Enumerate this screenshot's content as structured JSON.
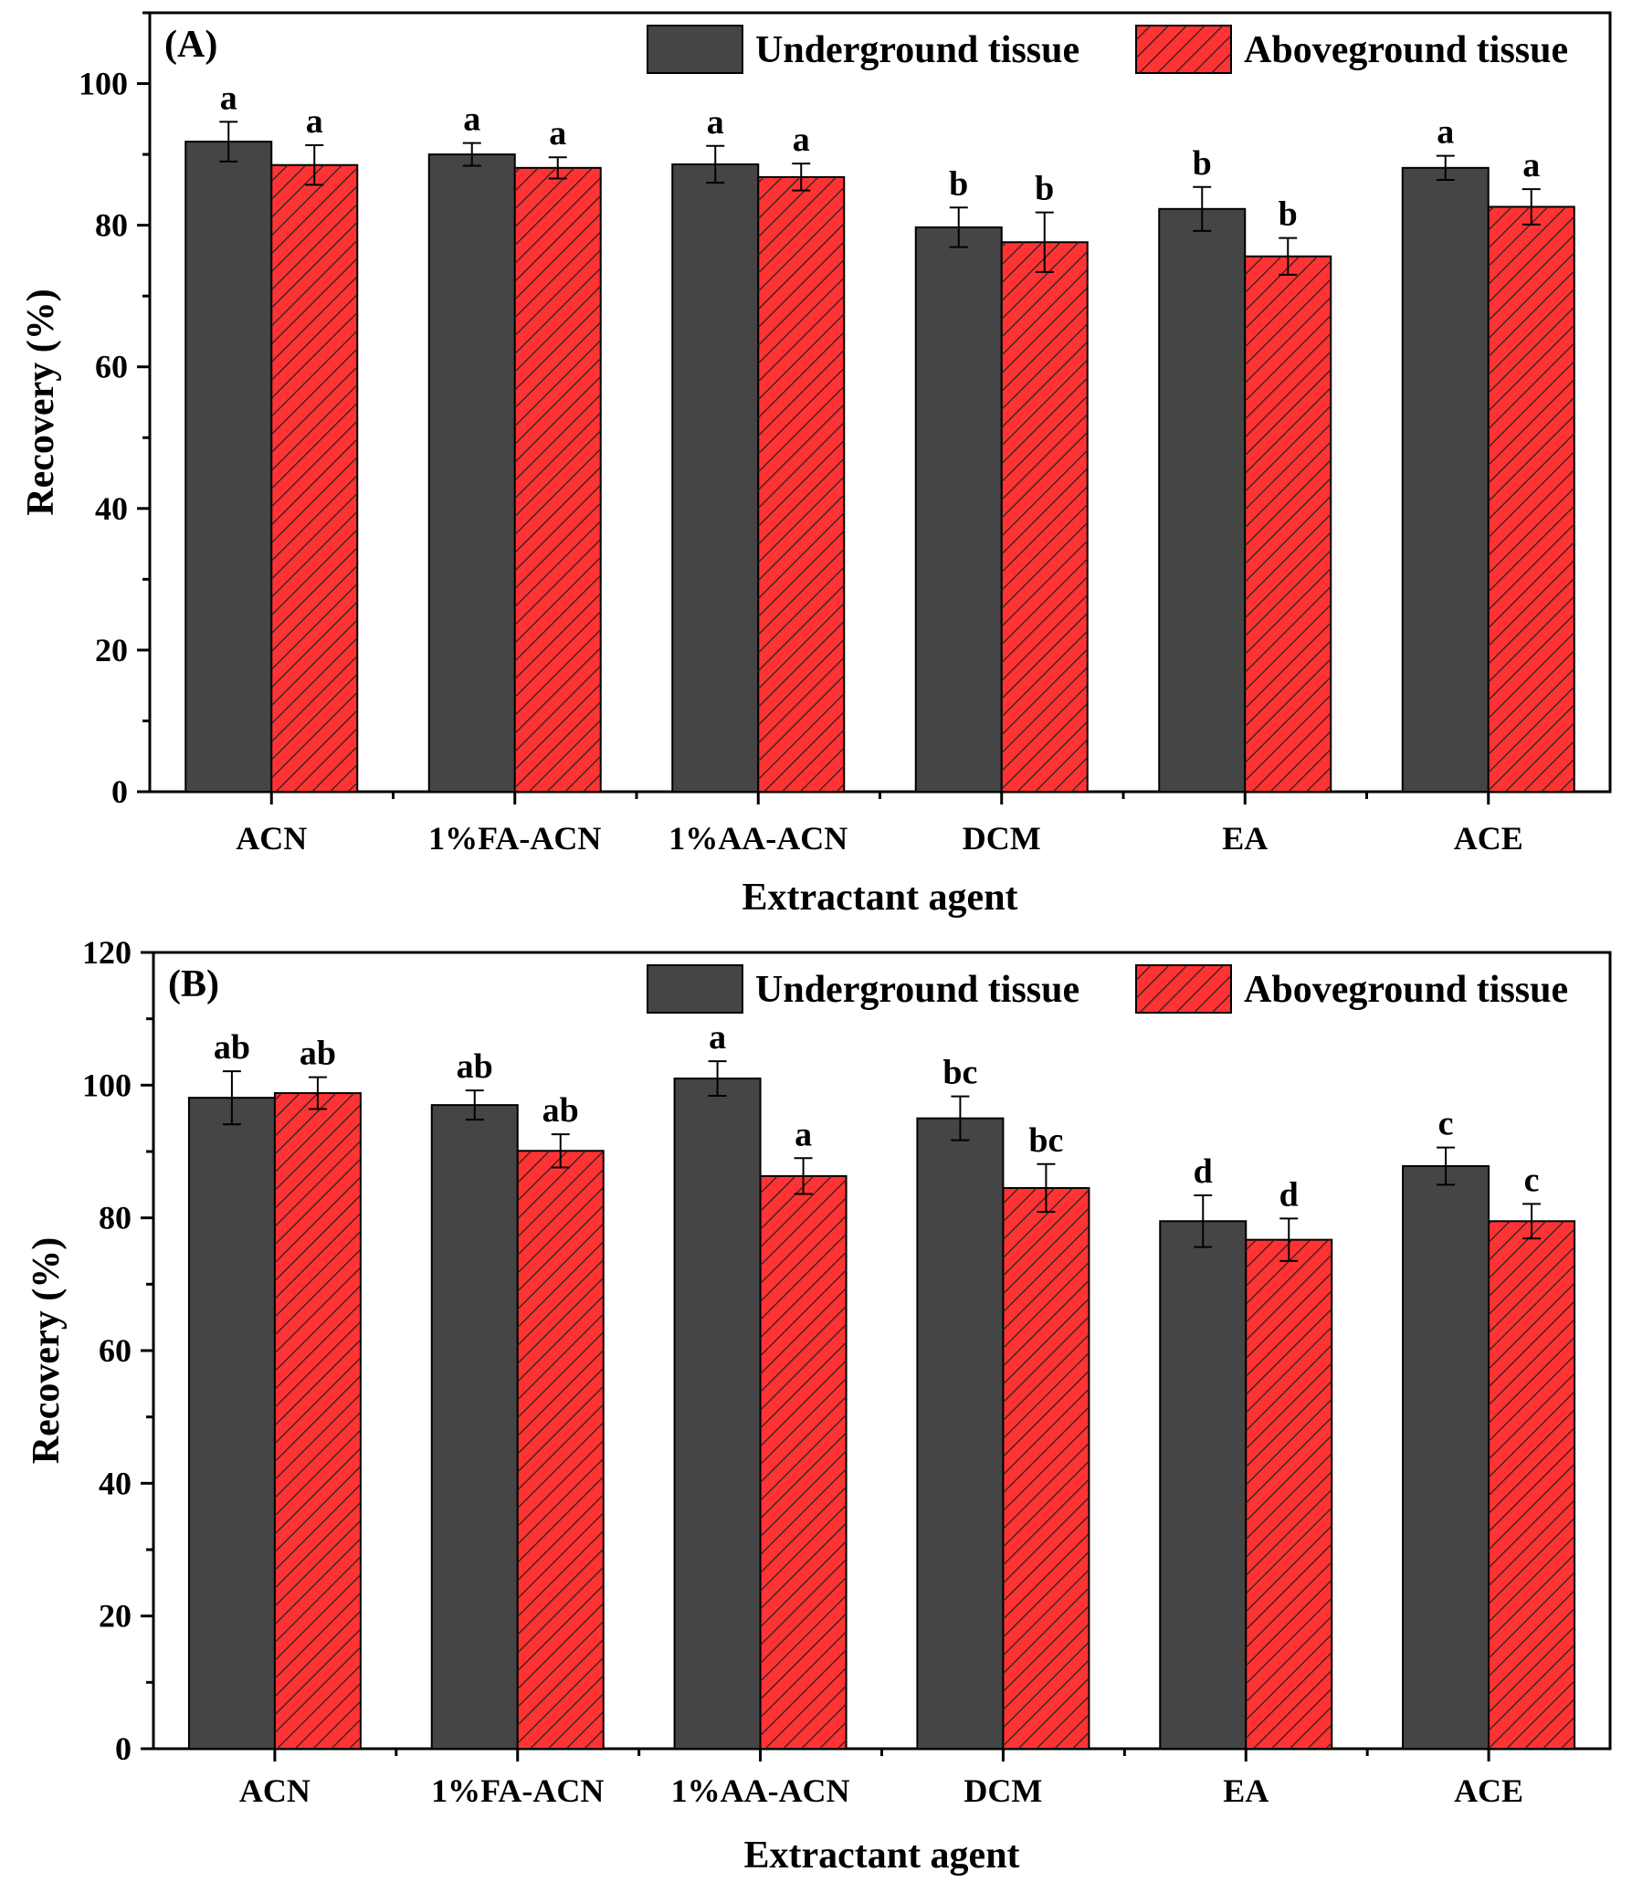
{
  "colors": {
    "underground": "#454545",
    "aboveground": "#ff3333",
    "hatch": "#222222"
  },
  "chart_data": [
    {
      "type": "bar",
      "panel_label": "(A)",
      "title": "",
      "xlabel": "Extractant agent",
      "ylabel": "Recovery (%)",
      "ylim": [
        0,
        110
      ],
      "yticks": [
        0,
        20,
        40,
        60,
        80,
        100
      ],
      "grid": false,
      "legend_position": "top-right",
      "categories": [
        "ACN",
        "1%FA-ACN",
        "1%AA-ACN",
        "DCM",
        "EA",
        "ACE"
      ],
      "series": [
        {
          "name": "Underground tissue",
          "values": [
            91.8,
            90.0,
            88.6,
            79.7,
            82.3,
            88.1
          ],
          "errors": [
            2.8,
            1.6,
            2.6,
            2.8,
            3.1,
            1.7
          ],
          "labels": [
            "a",
            "a",
            "a",
            "b",
            "b",
            "a"
          ]
        },
        {
          "name": "Aboveground tissue",
          "values": [
            88.5,
            88.1,
            86.8,
            77.6,
            75.6,
            82.6
          ],
          "errors": [
            2.8,
            1.5,
            1.9,
            4.2,
            2.6,
            2.5
          ],
          "labels": [
            "a",
            "a",
            "a",
            "b",
            "b",
            "a"
          ]
        }
      ]
    },
    {
      "type": "bar",
      "panel_label": "(B)",
      "title": "",
      "xlabel": "Extractant agent",
      "ylabel": "Recovery (%)",
      "ylim": [
        0,
        120
      ],
      "yticks": [
        0,
        20,
        40,
        60,
        80,
        100,
        120
      ],
      "grid": false,
      "legend_position": "top-right",
      "categories": [
        "ACN",
        "1%FA-ACN",
        "1%AA-ACN",
        "DCM",
        "EA",
        "ACE"
      ],
      "series": [
        {
          "name": "Underground tissue",
          "values": [
            98.1,
            97.0,
            101.0,
            95.0,
            79.5,
            87.8
          ],
          "errors": [
            4.0,
            2.2,
            2.6,
            3.3,
            3.9,
            2.8
          ],
          "labels": [
            "ab",
            "ab",
            "a",
            "bc",
            "d",
            "c"
          ]
        },
        {
          "name": "Aboveground tissue",
          "values": [
            98.8,
            90.1,
            86.3,
            84.5,
            76.7,
            79.5
          ],
          "errors": [
            2.4,
            2.5,
            2.7,
            3.6,
            3.2,
            2.6
          ],
          "labels": [
            "ab",
            "ab",
            "a",
            "bc",
            "d",
            "c"
          ]
        }
      ]
    }
  ]
}
